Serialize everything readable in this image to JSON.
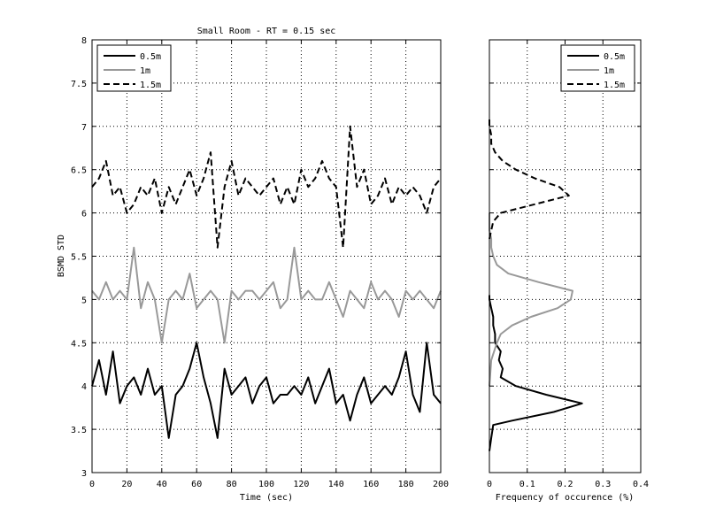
{
  "chart_data": [
    {
      "type": "line",
      "title": "Small Room -  RT = 0.15 sec",
      "xlabel": "Time (sec)",
      "ylabel": "BSMD STD",
      "xlim": [
        0,
        200
      ],
      "ylim": [
        3,
        8
      ],
      "xticks": [
        0,
        20,
        40,
        60,
        80,
        100,
        120,
        140,
        160,
        180,
        200
      ],
      "yticks": [
        3,
        3.5,
        4,
        4.5,
        5,
        5.5,
        6,
        6.5,
        7,
        7.5,
        8
      ],
      "grid": true,
      "legend_position": "top-left",
      "series": [
        {
          "name": "0.5m",
          "color": "#000000",
          "style": "solid",
          "x": [
            0,
            4,
            8,
            12,
            16,
            20,
            24,
            28,
            32,
            36,
            40,
            44,
            48,
            52,
            56,
            60,
            64,
            68,
            72,
            76,
            80,
            84,
            88,
            92,
            96,
            100,
            104,
            108,
            112,
            116,
            120,
            124,
            128,
            132,
            136,
            140,
            144,
            148,
            152,
            156,
            160,
            164,
            168,
            172,
            176,
            180,
            184,
            188,
            192,
            196,
            200
          ],
          "y": [
            4.0,
            4.3,
            3.9,
            4.4,
            3.8,
            4.0,
            4.1,
            3.9,
            4.2,
            3.9,
            4.0,
            3.4,
            3.9,
            4.0,
            4.2,
            4.5,
            4.1,
            3.8,
            3.4,
            4.2,
            3.9,
            4.0,
            4.1,
            3.8,
            4.0,
            4.1,
            3.8,
            3.9,
            3.9,
            4.0,
            3.9,
            4.1,
            3.8,
            4.0,
            4.2,
            3.8,
            3.9,
            3.6,
            3.9,
            4.1,
            3.8,
            3.9,
            4.0,
            3.9,
            4.1,
            4.4,
            3.9,
            3.7,
            4.5,
            3.9,
            3.8
          ]
        },
        {
          "name": "1m",
          "color": "#999999",
          "style": "solid",
          "x": [
            0,
            4,
            8,
            12,
            16,
            20,
            24,
            28,
            32,
            36,
            40,
            44,
            48,
            52,
            56,
            60,
            64,
            68,
            72,
            76,
            80,
            84,
            88,
            92,
            96,
            100,
            104,
            108,
            112,
            116,
            120,
            124,
            128,
            132,
            136,
            140,
            144,
            148,
            152,
            156,
            160,
            164,
            168,
            172,
            176,
            180,
            184,
            188,
            192,
            196,
            200
          ],
          "y": [
            5.1,
            5.0,
            5.2,
            5.0,
            5.1,
            5.0,
            5.6,
            4.9,
            5.2,
            5.0,
            4.5,
            5.0,
            5.1,
            5.0,
            5.3,
            4.9,
            5.0,
            5.1,
            5.0,
            4.5,
            5.1,
            5.0,
            5.1,
            5.1,
            5.0,
            5.1,
            5.2,
            4.9,
            5.0,
            5.6,
            5.0,
            5.1,
            5.0,
            5.0,
            5.2,
            5.0,
            4.8,
            5.1,
            5.0,
            4.9,
            5.2,
            5.0,
            5.1,
            5.0,
            4.8,
            5.1,
            5.0,
            5.1,
            5.0,
            4.9,
            5.1
          ]
        },
        {
          "name": "1.5m",
          "color": "#000000",
          "style": "dashed",
          "x": [
            0,
            4,
            8,
            12,
            16,
            20,
            24,
            28,
            32,
            36,
            40,
            44,
            48,
            52,
            56,
            60,
            64,
            68,
            72,
            76,
            80,
            84,
            88,
            92,
            96,
            100,
            104,
            108,
            112,
            116,
            120,
            124,
            128,
            132,
            136,
            140,
            144,
            148,
            152,
            156,
            160,
            164,
            168,
            172,
            176,
            180,
            184,
            188,
            192,
            196,
            200
          ],
          "y": [
            6.3,
            6.4,
            6.6,
            6.2,
            6.3,
            6.0,
            6.1,
            6.3,
            6.2,
            6.4,
            6.0,
            6.3,
            6.1,
            6.3,
            6.5,
            6.2,
            6.4,
            6.7,
            5.6,
            6.3,
            6.6,
            6.2,
            6.4,
            6.3,
            6.2,
            6.3,
            6.4,
            6.1,
            6.3,
            6.1,
            6.5,
            6.3,
            6.4,
            6.6,
            6.4,
            6.3,
            5.6,
            7.0,
            6.3,
            6.5,
            6.1,
            6.2,
            6.4,
            6.1,
            6.3,
            6.2,
            6.3,
            6.2,
            6.0,
            6.3,
            6.4
          ]
        }
      ]
    },
    {
      "type": "line",
      "xlabel": "Frequency of occurence (%)",
      "xlim": [
        0,
        0.4
      ],
      "ylim": [
        3,
        8
      ],
      "xticks": [
        0,
        0.1,
        0.2,
        0.3,
        0.4
      ],
      "grid": true,
      "legend_position": "top-right",
      "series": [
        {
          "name": "0.5m",
          "color": "#000000",
          "style": "solid",
          "y": [
            3.25,
            3.4,
            3.55,
            3.6,
            3.7,
            3.8,
            3.9,
            4.0,
            4.1,
            4.2,
            4.3,
            4.4,
            4.5,
            4.6,
            4.7,
            4.8,
            4.9,
            5.0,
            5.05
          ],
          "x": [
            0.0,
            0.005,
            0.01,
            0.06,
            0.17,
            0.245,
            0.15,
            0.07,
            0.03,
            0.035,
            0.025,
            0.03,
            0.015,
            0.015,
            0.01,
            0.01,
            0.005,
            0.0,
            0.0
          ]
        },
        {
          "name": "1m",
          "color": "#999999",
          "style": "solid",
          "y": [
            4.0,
            4.3,
            4.5,
            4.6,
            4.7,
            4.8,
            4.9,
            5.0,
            5.1,
            5.2,
            5.3,
            5.4,
            5.5,
            5.6,
            5.7,
            5.8,
            5.9,
            6.0
          ],
          "x": [
            0.0,
            0.005,
            0.02,
            0.03,
            0.06,
            0.11,
            0.18,
            0.215,
            0.22,
            0.13,
            0.05,
            0.02,
            0.01,
            0.005,
            0.005,
            0.0,
            0.0,
            0.0
          ]
        },
        {
          "name": "1.5m",
          "color": "#000000",
          "style": "dashed",
          "y": [
            5.7,
            5.8,
            5.9,
            6.0,
            6.1,
            6.2,
            6.3,
            6.4,
            6.5,
            6.6,
            6.7,
            6.8,
            6.9,
            7.0,
            7.1
          ],
          "x": [
            0.0,
            0.005,
            0.01,
            0.03,
            0.12,
            0.21,
            0.185,
            0.12,
            0.07,
            0.035,
            0.015,
            0.005,
            0.005,
            0.0,
            0.0
          ]
        }
      ]
    }
  ]
}
